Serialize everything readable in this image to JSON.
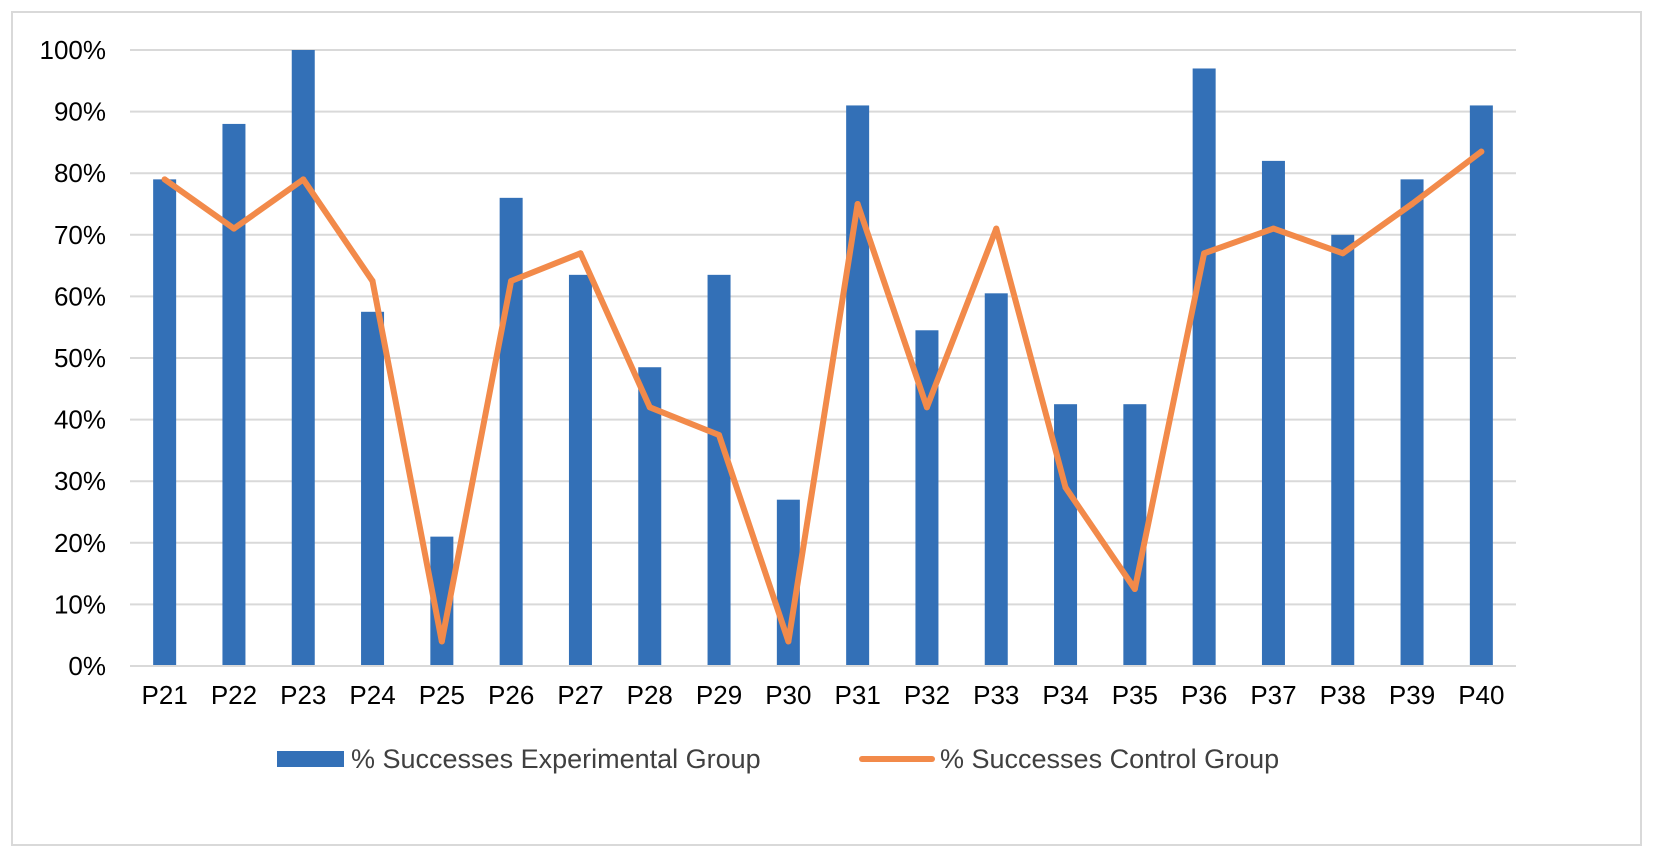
{
  "chart_data": {
    "type": "bar",
    "title": "",
    "xlabel": "",
    "ylabel": "",
    "categories": [
      "P21",
      "P22",
      "P23",
      "P24",
      "P25",
      "P26",
      "P27",
      "P28",
      "P29",
      "P30",
      "P31",
      "P32",
      "P33",
      "P34",
      "P35",
      "P36",
      "P37",
      "P38",
      "P39",
      "P40"
    ],
    "series": [
      {
        "name": "% Successes Experimental Group",
        "type": "bar",
        "color": "#3370b7",
        "values": [
          79,
          88,
          100,
          57.5,
          21,
          76,
          63.5,
          48.5,
          63.5,
          27,
          91,
          54.5,
          60.5,
          42.5,
          42.5,
          97,
          82,
          70,
          79,
          91
        ]
      },
      {
        "name": "% Successes Control Group",
        "type": "line",
        "color": "#f28a4a",
        "values": [
          79,
          71,
          79,
          62.5,
          4,
          62.5,
          67,
          42,
          37.5,
          4,
          75,
          42,
          71,
          29,
          12.5,
          67,
          71,
          67,
          75,
          83.5
        ]
      }
    ],
    "ylim": [
      0,
      100
    ],
    "yticks": [
      0,
      10,
      20,
      30,
      40,
      50,
      60,
      70,
      80,
      90,
      100
    ],
    "ytick_labels": [
      "0%",
      "10%",
      "20%",
      "30%",
      "40%",
      "50%",
      "60%",
      "70%",
      "80%",
      "90%",
      "100%"
    ],
    "grid": true,
    "legend": "bottom"
  }
}
